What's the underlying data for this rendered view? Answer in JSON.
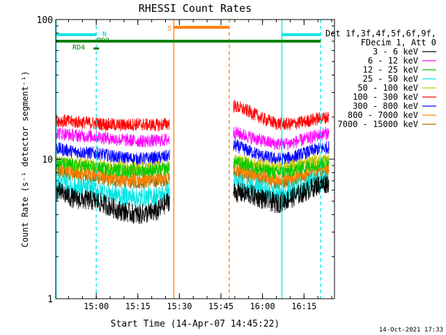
{
  "chart_data": {
    "type": "line",
    "title": "RHESSI Count Rates",
    "xlabel": "Start Time (14-Apr-07 14:45:22)",
    "ylabel": "Count Rate (s⁻¹ detector segment⁻¹)",
    "x_scale": "time",
    "y_scale": "log",
    "xlim": [
      "14:45:22",
      "16:26:00"
    ],
    "ylim": [
      1,
      100
    ],
    "x_ticks": [
      "15:00",
      "15:15",
      "15:30",
      "15:45",
      "16:00",
      "16:15"
    ],
    "y_ticks": [
      "1",
      "10",
      "100"
    ],
    "grid": false,
    "legend_position": "right",
    "legend_header": [
      "Det 1f,3f,4f,5f,6f,9f,",
      "FDecim 1, Att 0"
    ],
    "series": [
      {
        "name": "3 - 6 keV",
        "color": "#000000",
        "x": [
          "14:45",
          "14:52",
          "15:00",
          "15:08",
          "15:15",
          "15:22",
          "15:26",
          "15:50",
          "15:55",
          "16:00",
          "16:05",
          "16:10",
          "16:15",
          "16:20",
          "16:24"
        ],
        "y": [
          6.0,
          5.2,
          5.0,
          4.3,
          4.0,
          4.2,
          5.0,
          5.8,
          5.6,
          5.2,
          4.8,
          5.2,
          5.8,
          6.5,
          6.8
        ]
      },
      {
        "name": "6 - 12 keV",
        "color": "#ff00ff",
        "x": [
          "14:45",
          "14:52",
          "15:00",
          "15:08",
          "15:15",
          "15:22",
          "15:26",
          "15:50",
          "15:55",
          "16:00",
          "16:05",
          "16:10",
          "16:15",
          "16:20",
          "16:24"
        ],
        "y": [
          15.5,
          14.8,
          14.5,
          13.8,
          13.5,
          13.5,
          13.8,
          15.5,
          14.5,
          13.5,
          12.8,
          13.0,
          13.8,
          14.8,
          15.5
        ]
      },
      {
        "name": "12 - 25 keV",
        "color": "#00cc00",
        "x": [
          "14:45",
          "14:52",
          "15:00",
          "15:08",
          "15:15",
          "15:22",
          "15:26",
          "15:50",
          "15:55",
          "16:00",
          "16:05",
          "16:10",
          "16:15",
          "16:20",
          "16:24"
        ],
        "y": [
          9.5,
          9.0,
          8.7,
          8.3,
          8.2,
          8.3,
          8.6,
          9.5,
          9.0,
          8.4,
          8.0,
          8.2,
          8.8,
          9.2,
          9.6
        ]
      },
      {
        "name": "25 - 50 keV",
        "color": "#00e5e5",
        "x": [
          "14:45",
          "14:52",
          "15:00",
          "15:08",
          "15:15",
          "15:22",
          "15:26",
          "15:50",
          "15:55",
          "16:00",
          "16:05",
          "16:10",
          "16:15",
          "16:20",
          "16:24"
        ],
        "y": [
          7.0,
          6.3,
          6.0,
          5.5,
          5.3,
          5.4,
          5.8,
          6.8,
          6.4,
          6.0,
          5.6,
          5.9,
          6.4,
          7.0,
          7.2
        ]
      },
      {
        "name": "50 - 100 keV",
        "color": "#c8c800",
        "x": [
          "14:45",
          "14:52",
          "15:00",
          "15:08",
          "15:15",
          "15:22",
          "15:26",
          "15:50",
          "15:55",
          "16:00",
          "16:05",
          "16:10",
          "16:15",
          "16:20",
          "16:24"
        ],
        "y": [
          9.8,
          9.3,
          9.0,
          8.7,
          8.6,
          8.7,
          9.0,
          10.0,
          9.5,
          9.0,
          8.6,
          8.8,
          9.3,
          9.8,
          10.0
        ]
      },
      {
        "name": "100 - 300 keV",
        "color": "#ff0000",
        "x": [
          "14:45",
          "14:52",
          "15:00",
          "15:08",
          "15:15",
          "15:22",
          "15:26",
          "15:50",
          "15:55",
          "16:00",
          "16:05",
          "16:10",
          "16:15",
          "16:20",
          "16:24"
        ],
        "y": [
          19.0,
          18.5,
          18.0,
          17.5,
          17.8,
          17.5,
          18.0,
          24.0,
          22.0,
          19.5,
          18.0,
          17.8,
          18.5,
          19.5,
          20.0
        ]
      },
      {
        "name": "300 - 800 keV",
        "color": "#0000ff",
        "x": [
          "14:45",
          "14:52",
          "15:00",
          "15:08",
          "15:15",
          "15:22",
          "15:26",
          "15:50",
          "15:55",
          "16:00",
          "16:05",
          "16:10",
          "16:15",
          "16:20",
          "16:24"
        ],
        "y": [
          12.0,
          11.3,
          11.0,
          10.3,
          10.0,
          10.2,
          10.5,
          12.5,
          11.5,
          10.5,
          10.0,
          10.2,
          11.0,
          11.8,
          12.2
        ]
      },
      {
        "name": "800 - 7000 keV",
        "color": "#ff8000",
        "x": [
          "14:45",
          "14:52",
          "15:00",
          "15:08",
          "15:15",
          "15:22",
          "15:26",
          "15:50",
          "15:55",
          "16:00",
          "16:05",
          "16:10",
          "16:15",
          "16:20",
          "16:24"
        ],
        "y": [
          8.8,
          8.2,
          7.8,
          7.3,
          7.2,
          7.3,
          7.6,
          8.6,
          8.1,
          7.6,
          7.2,
          7.4,
          8.0,
          8.5,
          8.8
        ]
      },
      {
        "name": "7000 - 15000 keV",
        "color": "#a07000",
        "x": [
          "14:45",
          "14:52",
          "15:00",
          "15:08",
          "15:15",
          "15:22",
          "15:26",
          "15:50",
          "15:55",
          "16:00",
          "16:05",
          "16:10",
          "16:15",
          "16:20",
          "16:24"
        ],
        "y": [
          8.2,
          7.7,
          7.3,
          6.9,
          6.8,
          6.9,
          7.2,
          8.0,
          7.6,
          7.1,
          6.8,
          7.0,
          7.5,
          8.0,
          8.3
        ]
      }
    ],
    "vertical_lines": [
      {
        "x": "14:45:30",
        "color": "#00e5e5",
        "style": "solid"
      },
      {
        "x": "15:00",
        "color": "#00e5e5",
        "style": "dashed"
      },
      {
        "x": "15:28",
        "color": "#ff8000",
        "style": "solid"
      },
      {
        "x": "15:48",
        "color": "#ff8000",
        "style": "dashed"
      },
      {
        "x": "16:07",
        "color": "#00e5e5",
        "style": "solid"
      },
      {
        "x": "16:21",
        "color": "#00e5e5",
        "style": "dashed"
      }
    ],
    "flag_bars": [
      {
        "label": "N",
        "color": "#00e5e5",
        "x_start": "14:45:30",
        "x_end": "15:00",
        "y": 78
      },
      {
        "label": "N",
        "color": "#00e5e5",
        "x_start": "16:07",
        "x_end": "16:21",
        "y": 78
      },
      {
        "label": "RD0",
        "color": "#008000",
        "x_start": "14:45:30",
        "x_end": "16:21",
        "y": 70
      },
      {
        "label": "RD4",
        "color": "#008000",
        "x_start": "14:59",
        "x_end": "15:01",
        "y": 62
      },
      {
        "label": "S",
        "color": "#ff8000",
        "x_start": "15:28",
        "x_end": "15:48",
        "y": 88
      }
    ],
    "annotations": {
      "flags": [
        "N",
        "RD0",
        "RD4",
        "S"
      ],
      "timestamp": "14-Oct-2021 17:33"
    }
  }
}
